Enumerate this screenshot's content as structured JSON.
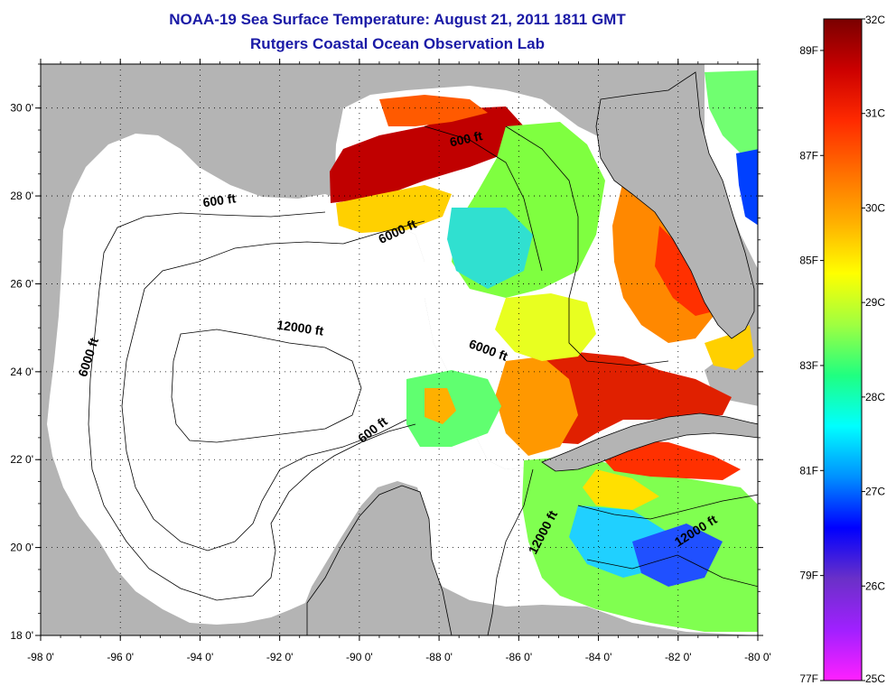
{
  "title": "NOAA-19 Sea Surface Temperature:  August 21, 2011 1811 GMT",
  "subtitle": "Rutgers Coastal Ocean Observation Lab",
  "map": {
    "lon_range": [
      -98,
      -80
    ],
    "lat_range": [
      18,
      31
    ],
    "lon_ticks": [
      {
        "value": -98,
        "label": "-98 0'"
      },
      {
        "value": -96,
        "label": "-96 0'"
      },
      {
        "value": -94,
        "label": "-94 0'"
      },
      {
        "value": -92,
        "label": "-92 0'"
      },
      {
        "value": -90,
        "label": "-90 0'"
      },
      {
        "value": -88,
        "label": "-88 0'"
      },
      {
        "value": -86,
        "label": "-86 0'"
      },
      {
        "value": -84,
        "label": "-84 0'"
      },
      {
        "value": -82,
        "label": "-82 0'"
      },
      {
        "value": -80,
        "label": "-80 0'"
      }
    ],
    "lat_ticks": [
      {
        "value": 18,
        "label": "18 0'"
      },
      {
        "value": 20,
        "label": "20 0'"
      },
      {
        "value": 22,
        "label": "22 0'"
      },
      {
        "value": 24,
        "label": "24 0'"
      },
      {
        "value": 26,
        "label": "26 0'"
      },
      {
        "value": 28,
        "label": "28 0'"
      },
      {
        "value": 30,
        "label": "30 0'"
      }
    ],
    "grid": "dotted",
    "land_color": "#b4b4b4",
    "nodata_color": "#ffffff",
    "contour_labels": [
      {
        "text": "600 ft",
        "lon": -93.5,
        "lat": 27.8,
        "angle": -8
      },
      {
        "text": "6000 ft",
        "lon": -89.0,
        "lat": 27.1,
        "angle": -25
      },
      {
        "text": "12000 ft",
        "lon": -91.5,
        "lat": 24.9,
        "angle": 8
      },
      {
        "text": "6000 ft",
        "lon": -96.7,
        "lat": 24.3,
        "angle": -72
      },
      {
        "text": "6000 ft",
        "lon": -86.8,
        "lat": 24.4,
        "angle": 20
      },
      {
        "text": "600 ft",
        "lon": -89.6,
        "lat": 22.6,
        "angle": -38
      },
      {
        "text": "600 ft",
        "lon": -87.3,
        "lat": 29.2,
        "angle": -12
      },
      {
        "text": "12000 ft",
        "lon": -85.3,
        "lat": 20.3,
        "angle": -62
      },
      {
        "text": "12000 ft",
        "lon": -81.5,
        "lat": 20.3,
        "angle": -32
      }
    ]
  },
  "colorbar": {
    "celsius": [
      {
        "value": 32,
        "label": "32C"
      },
      {
        "value": 31,
        "label": "31C"
      },
      {
        "value": 30,
        "label": "30C"
      },
      {
        "value": 29,
        "label": "29C"
      },
      {
        "value": 28,
        "label": "28C"
      },
      {
        "value": 27,
        "label": "27C"
      },
      {
        "value": 26,
        "label": "26C"
      },
      {
        "value": 25,
        "label": "25C"
      }
    ],
    "fahrenheit": [
      {
        "value": 89,
        "label": "89F"
      },
      {
        "value": 87,
        "label": "87F"
      },
      {
        "value": 85,
        "label": "85F"
      },
      {
        "value": 83,
        "label": "83F"
      },
      {
        "value": 81,
        "label": "81F"
      },
      {
        "value": 79,
        "label": "79F"
      },
      {
        "value": 77,
        "label": "77F"
      }
    ],
    "gradient": [
      "#7a0000",
      "#cc0000",
      "#ff2a00",
      "#ff6e00",
      "#ffb000",
      "#ffff00",
      "#a0ff40",
      "#20ff80",
      "#00ffff",
      "#0090ff",
      "#0000ff",
      "#6a30c8",
      "#a020ff",
      "#ff20ff"
    ]
  }
}
